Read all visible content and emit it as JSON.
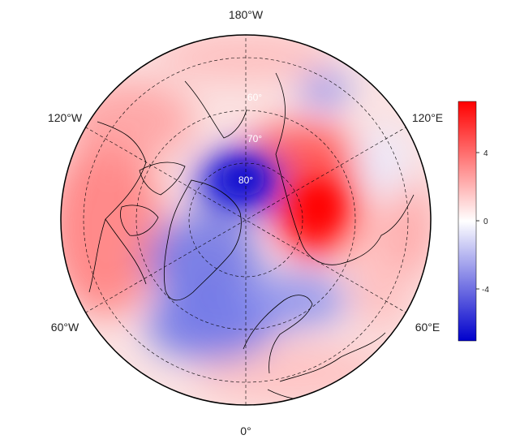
{
  "map": {
    "projection": "north polar stereographic",
    "longitude_labels": {
      "top": "180°W",
      "bottom": "0°",
      "upper_left": "120°W",
      "upper_right": "120°E",
      "lower_left": "60°W",
      "lower_right": "60°E"
    },
    "latitude_labels": [
      "60°",
      "70°",
      "80°"
    ],
    "colorbar": {
      "tick_labels": [
        "4",
        "0",
        "-4"
      ],
      "colors": {
        "high": "#ff0000",
        "mid": "#ffffff",
        "low": "#0000cc"
      }
    },
    "anomaly_colors": {
      "warm": "#ff3b3b",
      "cold": "#3344dd"
    }
  }
}
